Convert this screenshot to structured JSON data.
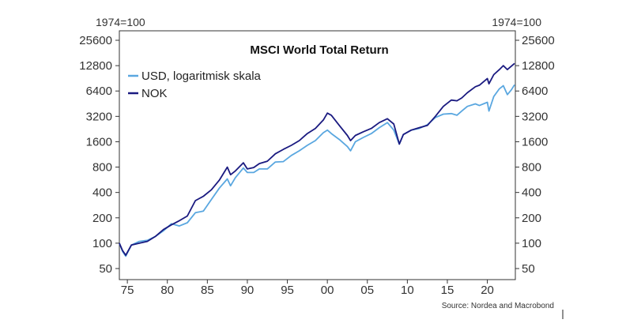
{
  "chart_data": {
    "type": "line",
    "title": "MSCI World Total Return",
    "y_unit_left": "1974=100",
    "y_unit_right": "1974=100",
    "y_scale": "log",
    "ylim": [
      45,
      28000
    ],
    "xlim": [
      1974,
      2023.5
    ],
    "y_ticks": [
      50,
      100,
      200,
      400,
      800,
      1600,
      3200,
      6400,
      12800,
      25600
    ],
    "y_tick_labels": [
      "50",
      "100",
      "200",
      "400",
      "800",
      "1600",
      "3200",
      "6400",
      "12800",
      "25600"
    ],
    "x_ticks": [
      1975,
      1980,
      1985,
      1990,
      1995,
      2000,
      2005,
      2010,
      2015,
      2020
    ],
    "x_tick_labels": [
      "75",
      "80",
      "85",
      "90",
      "95",
      "00",
      "05",
      "10",
      "15",
      "20"
    ],
    "legend_placement": "top-left",
    "grid": false,
    "source": "Source: Nordea and Macrobond",
    "series": [
      {
        "name": "USD, logaritmisk skala",
        "color": "#5aa7e0",
        "x": [
          1974,
          1974.4,
          1974.8,
          1975.5,
          1976.5,
          1977.5,
          1978.5,
          1979.5,
          1980.5,
          1981.5,
          1982.5,
          1983.5,
          1984.5,
          1985.5,
          1986.5,
          1987.5,
          1987.9,
          1988.5,
          1989.5,
          1990,
          1990.8,
          1991.5,
          1992.5,
          1993.5,
          1994.5,
          1995.5,
          1996.5,
          1997.5,
          1998.5,
          1999.5,
          2000,
          2000.5,
          2001.5,
          2002.5,
          2002.9,
          2003.5,
          2004.5,
          2005.5,
          2006.5,
          2007.5,
          2008.3,
          2009,
          2009.5,
          2010.5,
          2011.5,
          2012.5,
          2013.5,
          2014.5,
          2015.5,
          2016.2,
          2016.8,
          2017.5,
          2018.5,
          2019,
          2020,
          2020.2,
          2020.8,
          2021.5,
          2022,
          2022.5,
          2023,
          2023.4
        ],
        "y": [
          100,
          80,
          70,
          95,
          105,
          108,
          120,
          140,
          170,
          160,
          175,
          230,
          240,
          330,
          450,
          580,
          480,
          600,
          780,
          690,
          690,
          760,
          760,
          920,
          930,
          1100,
          1250,
          1450,
          1650,
          2050,
          2200,
          2000,
          1700,
          1400,
          1250,
          1600,
          1800,
          2000,
          2350,
          2700,
          2200,
          1500,
          1950,
          2200,
          2300,
          2550,
          3100,
          3400,
          3450,
          3300,
          3700,
          4200,
          4500,
          4300,
          4700,
          3700,
          5500,
          6800,
          7400,
          5800,
          6600,
          7600
        ]
      },
      {
        "name": "NOK",
        "color": "#1a1a80",
        "x": [
          1974,
          1974.4,
          1974.8,
          1975.5,
          1976.5,
          1977.5,
          1978.5,
          1979.5,
          1980.5,
          1981.5,
          1982.5,
          1983.5,
          1984.5,
          1985.5,
          1986.5,
          1987.5,
          1987.9,
          1988.5,
          1989.5,
          1990,
          1990.8,
          1991.5,
          1992.5,
          1993.5,
          1994.5,
          1995.5,
          1996.5,
          1997.5,
          1998.5,
          1999.5,
          2000,
          2000.5,
          2001.5,
          2002.5,
          2002.9,
          2003.5,
          2004.5,
          2005.5,
          2006.5,
          2007.5,
          2008.3,
          2009,
          2009.5,
          2010.5,
          2011.5,
          2012.5,
          2013.5,
          2014.5,
          2015.5,
          2016.2,
          2016.8,
          2017.5,
          2018.5,
          2019,
          2020,
          2020.2,
          2020.8,
          2021.5,
          2022,
          2022.5,
          2023,
          2023.4
        ],
        "y": [
          100,
          82,
          72,
          95,
          100,
          105,
          120,
          145,
          165,
          185,
          210,
          320,
          360,
          430,
          560,
          800,
          650,
          720,
          900,
          760,
          790,
          880,
          940,
          1150,
          1300,
          1450,
          1650,
          2000,
          2300,
          2900,
          3500,
          3300,
          2500,
          1900,
          1650,
          1900,
          2100,
          2300,
          2700,
          3000,
          2600,
          1500,
          1950,
          2200,
          2350,
          2500,
          3200,
          4200,
          5000,
          4900,
          5300,
          6100,
          7200,
          7500,
          9000,
          7800,
          10000,
          11500,
          12800,
          11500,
          12600,
          13600
        ]
      }
    ]
  }
}
